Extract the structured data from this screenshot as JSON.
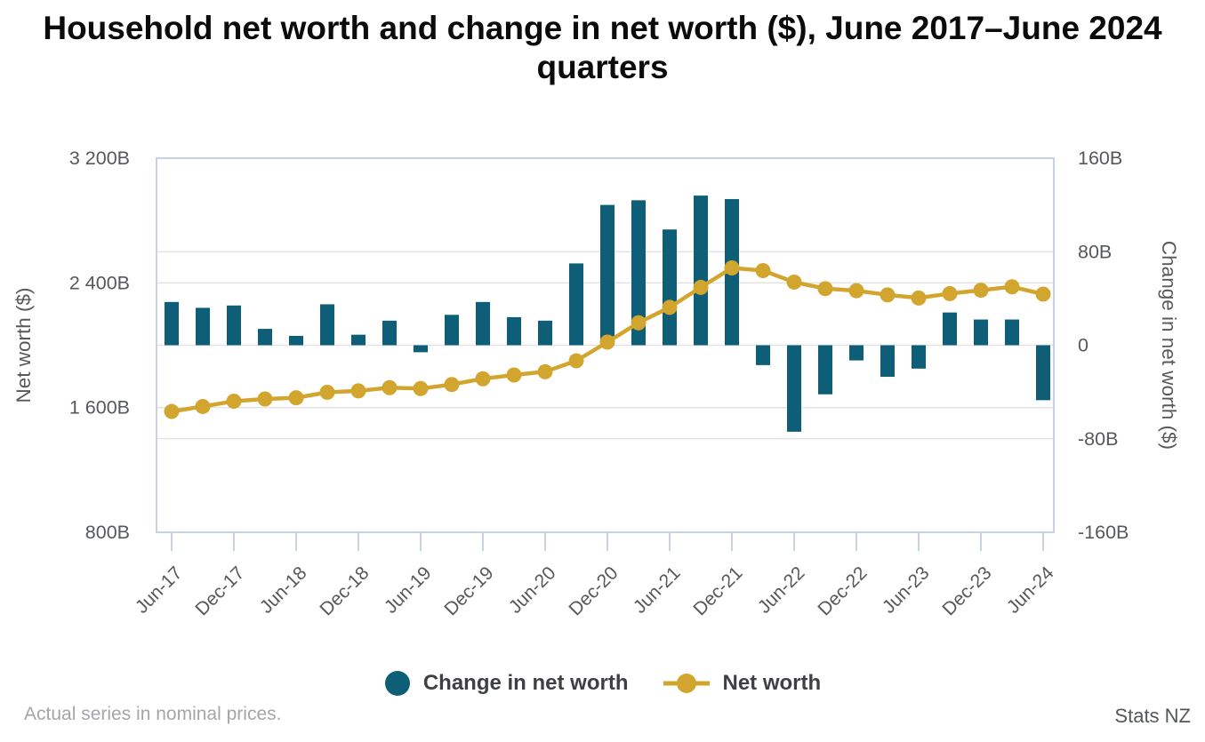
{
  "title": {
    "line1": "Household net worth and change in net worth ($), June 2017–June 2024",
    "line2": "quarters"
  },
  "legend": {
    "items": [
      {
        "label": "Change in net worth",
        "marker": "bar-dot"
      },
      {
        "label": "Net worth",
        "marker": "line-dot"
      }
    ]
  },
  "footer": {
    "note": "Actual series in nominal prices.",
    "source": "Stats NZ"
  },
  "chart_data": {
    "type": "combo",
    "title": "Household net worth and change in net worth ($), June 2017–June 2024 quarters",
    "categories": [
      "Jun-17",
      "Sep-17",
      "Dec-17",
      "Mar-18",
      "Jun-18",
      "Sep-18",
      "Dec-18",
      "Mar-19",
      "Jun-19",
      "Sep-19",
      "Dec-19",
      "Mar-20",
      "Jun-20",
      "Sep-20",
      "Dec-20",
      "Mar-21",
      "Jun-21",
      "Sep-21",
      "Dec-21",
      "Mar-22",
      "Jun-22",
      "Sep-22",
      "Dec-22",
      "Mar-23",
      "Jun-23",
      "Sep-23",
      "Dec-23",
      "Mar-24",
      "Jun-24"
    ],
    "x_tick_labels": [
      "Jun-17",
      "Dec-17",
      "Jun-18",
      "Dec-18",
      "Jun-19",
      "Dec-19",
      "Jun-20",
      "Dec-20",
      "Jun-21",
      "Dec-21",
      "Jun-22",
      "Dec-22",
      "Jun-23",
      "Dec-23",
      "Jun-24"
    ],
    "series": [
      {
        "name": "Change in net worth",
        "type": "bar",
        "axis": "right",
        "values": [
          37,
          32,
          34,
          14,
          8,
          35,
          9,
          21,
          -6,
          26,
          37,
          24,
          21,
          70,
          120,
          124,
          99,
          128,
          125,
          -17,
          -74,
          -42,
          -13,
          -27,
          -20,
          28,
          22,
          22,
          -47
        ]
      },
      {
        "name": "Net worth",
        "type": "line",
        "axis": "left",
        "values": [
          1575,
          1607,
          1641,
          1655,
          1663,
          1698,
          1707,
          1728,
          1722,
          1748,
          1785,
          1809,
          1830,
          1900,
          2020,
          2144,
          2243,
          2371,
          2496,
          2479,
          2405,
          2363,
          2350,
          2323,
          2303,
          2331,
          2353,
          2375,
          2328
        ]
      }
    ],
    "left_axis": {
      "title": "Net worth ($)",
      "min": 800,
      "max": 3200,
      "ticks": [
        {
          "value": 3200,
          "label": "3 200B"
        },
        {
          "value": 2400,
          "label": "2 400B"
        },
        {
          "value": 1600,
          "label": "1 600B"
        },
        {
          "value": 800,
          "label": "800B"
        }
      ],
      "gridlines": [
        2400,
        1600
      ]
    },
    "right_axis": {
      "title": "Change in net worth ($)",
      "min": -160,
      "max": 160,
      "ticks": [
        {
          "value": 160,
          "label": "160B"
        },
        {
          "value": 80,
          "label": "80B"
        },
        {
          "value": 0,
          "label": "0"
        },
        {
          "value": -80,
          "label": "-80B"
        },
        {
          "value": -160,
          "label": "-160B"
        }
      ],
      "gridlines": [
        80,
        0,
        -80
      ]
    },
    "grid": true,
    "legend_position": "bottom",
    "colors": {
      "bar": "#0E5E77",
      "line": "#D2A62E",
      "grid": "#E4E4E5",
      "axis_border": "#C9D2E4",
      "tick_text": "#56585C",
      "axis_title_text": "#56585C"
    }
  }
}
